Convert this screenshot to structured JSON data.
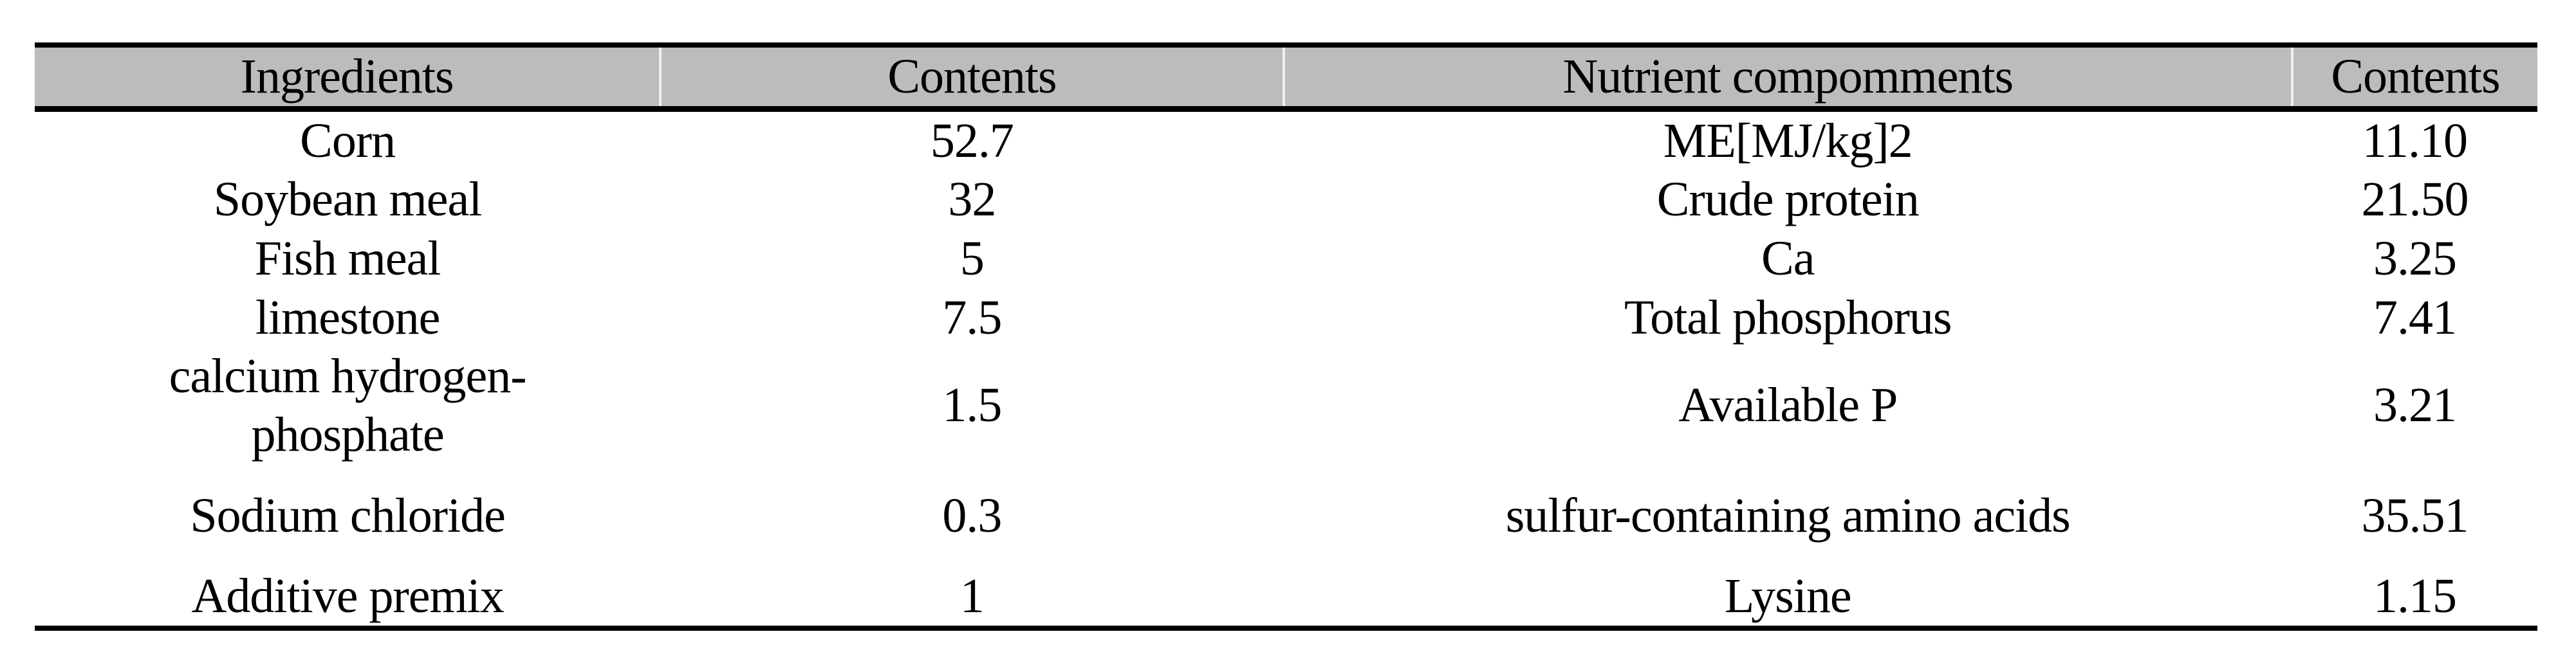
{
  "table": {
    "header": {
      "ingredients_label": "Ingredients",
      "ingredients_contents_label": "Contents",
      "nutrients_label": "Nutrient compomments",
      "nutrients_contents_label": "Contents"
    },
    "rows": [
      {
        "ingredient": "Corn",
        "ingredient_content": "52.7",
        "nutrient": "ME[MJ/kg]2",
        "nutrient_content": "11.10"
      },
      {
        "ingredient": "Soybean meal",
        "ingredient_content": "32",
        "nutrient": "Crude protein",
        "nutrient_content": "21.50"
      },
      {
        "ingredient": "Fish meal",
        "ingredient_content": "5",
        "nutrient": "Ca",
        "nutrient_content": "3.25"
      },
      {
        "ingredient": "limestone",
        "ingredient_content": "7.5",
        "nutrient": "Total phosphorus",
        "nutrient_content": "7.41"
      },
      {
        "ingredient": "calcium hydrogen-\nphosphate",
        "ingredient_content": "1.5",
        "nutrient": "Available P",
        "nutrient_content": "3.21"
      },
      {
        "ingredient": "Sodium chloride",
        "ingredient_content": "0.3",
        "nutrient": "sulfur-containing amino acids",
        "nutrient_content": "35.51"
      },
      {
        "ingredient": "Additive premix",
        "ingredient_content": "1",
        "nutrient": "Lysine",
        "nutrient_content": "1.15"
      }
    ],
    "colors": {
      "header_bg": "#bcbcbc",
      "rule": "#000000",
      "text": "#000000",
      "header_divider": "#efefef"
    }
  }
}
